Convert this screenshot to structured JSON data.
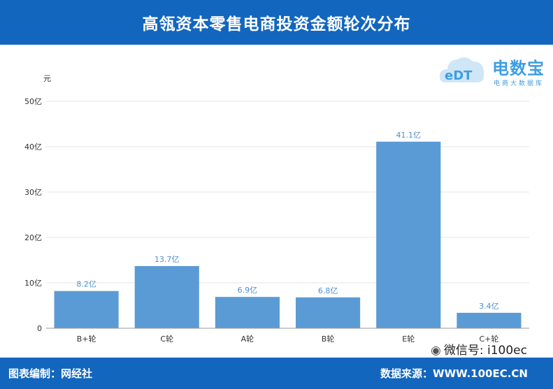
{
  "header": {
    "title": "高瓴资本零售电商投资金额轮次分布"
  },
  "footer": {
    "left_text": "图表编制：网经社",
    "right_text": "数据来源：WWW.100EC.CN"
  },
  "wechat": {
    "text": "微信号: i100ec"
  },
  "logo": {
    "name": "电数宝",
    "sub": "电商大数据库",
    "mark": "eDT"
  },
  "colors": {
    "header": "#1366bd",
    "bar": "#5b9bd5",
    "label": "#4d8fd1"
  },
  "chart_data": {
    "type": "bar",
    "title": "高瓴资本零售电商投资金额轮次分布",
    "ylabel": "元",
    "ylim": [
      0,
      50
    ],
    "yticks": [
      "0",
      "10亿",
      "20亿",
      "30亿",
      "40亿",
      "50亿"
    ],
    "categories": [
      "B+轮",
      "C轮",
      "A轮",
      "B轮",
      "E轮",
      "C+轮"
    ],
    "values": [
      8.2,
      13.7,
      6.9,
      6.8,
      41.1,
      3.4
    ],
    "data_labels": [
      "8.2亿",
      "13.7亿",
      "6.9亿",
      "6.8亿",
      "41.1亿",
      "3.4亿"
    ],
    "grid": true
  }
}
